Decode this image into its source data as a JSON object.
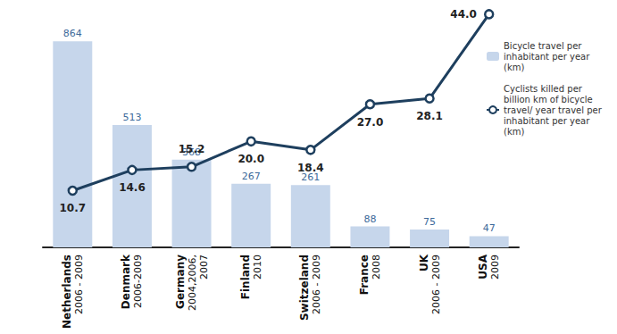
{
  "chart_data": {
    "type": "bar",
    "categories": [
      "Netherlands\n2006 - 2009",
      "Denmark\n2006-2009",
      "Germany\n2004,2006,\n2007",
      "Finland\n2010",
      "Switzeland\n2006 - 2009",
      "France\n2008",
      "UK\n2006 - 2009",
      "USA\n2009"
    ],
    "series": [
      {
        "name": "Bicycle travel per inhabitant per year (km)",
        "type": "bar",
        "color": "#c6d6eb",
        "values": [
          864,
          513,
          368,
          267,
          261,
          88,
          75,
          47
        ]
      },
      {
        "name": "Cyclists killed per billion km of bicycle travel/ year travel per inhabitant per year (km)",
        "type": "line",
        "axis": "y2",
        "color": "#1e3f5e",
        "marker": "circle",
        "values": [
          10.7,
          14.6,
          15.2,
          20,
          18.4,
          27,
          28.1,
          44
        ],
        "value_labels": [
          "10.7",
          "14.6",
          "15.2",
          "20.0",
          "18.4",
          "27.0",
          "28.1",
          "44.0"
        ]
      }
    ],
    "ylim": [
      0,
      1000
    ],
    "y2lim": [
      0,
      45
    ],
    "tick_labels": false,
    "grid": false,
    "data_labels": true,
    "legend": "top right"
  }
}
